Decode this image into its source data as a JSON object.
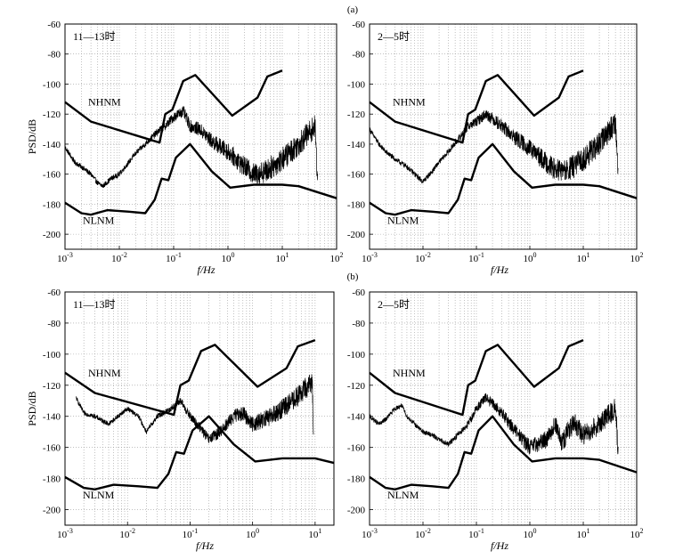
{
  "figure": {
    "panel_labels": [
      "(a)",
      "(b)"
    ]
  },
  "chart_data": [
    {
      "type": "line",
      "row": "(a)",
      "x_scale": "log",
      "xlabel": "f/Hz",
      "ylabel": "PSD/dB",
      "xlim": [
        0.001,
        100
      ],
      "ylim": [
        -210,
        -60
      ],
      "x_tick_labels": [
        "10-3",
        "10-2",
        "10-1",
        "100",
        "101",
        "102"
      ],
      "y_ticks": [
        -60,
        -80,
        -100,
        -120,
        -140,
        -160,
        -180,
        -200
      ],
      "annotation": "11—13时",
      "series": [
        {
          "name": "NHNM",
          "x": [
            0.001,
            0.003,
            0.055,
            0.07,
            0.095,
            0.15,
            0.25,
            1.2,
            3.5,
            5.3,
            10
          ],
          "y": [
            -112,
            -125,
            -139,
            -120,
            -117,
            -98,
            -94,
            -121,
            -109,
            -95,
            -91
          ]
        },
        {
          "name": "NLNM",
          "x": [
            0.001,
            0.002,
            0.003,
            0.006,
            0.015,
            0.03,
            0.045,
            0.06,
            0.08,
            0.11,
            0.2,
            0.5,
            1.1,
            3,
            10,
            20,
            100
          ],
          "y": [
            -179,
            -186,
            -187,
            -184,
            -185,
            -186,
            -177,
            -163,
            -164,
            -149,
            -140,
            -158,
            -169,
            -167,
            -167,
            -168,
            -176
          ]
        },
        {
          "x": [
            0.001,
            0.0015,
            0.002,
            0.003,
            0.004,
            0.005,
            0.007,
            0.01,
            0.015,
            0.02,
            0.03,
            0.05,
            0.07,
            0.1,
            0.15,
            0.2,
            0.3,
            0.5,
            1,
            2,
            3,
            5,
            10,
            20,
            40,
            45
          ],
          "y": [
            -142,
            -152,
            -155,
            -160,
            -166,
            -168,
            -163,
            -160,
            -152,
            -146,
            -140,
            -132,
            -128,
            -122,
            -118,
            -128,
            -130,
            -138,
            -145,
            -155,
            -160,
            -158,
            -150,
            -140,
            -128,
            -165
          ]
        }
      ]
    },
    {
      "type": "line",
      "row": "(a)",
      "x_scale": "log",
      "xlabel": "f/Hz",
      "xlim": [
        0.001,
        100
      ],
      "ylim": [
        -210,
        -60
      ],
      "x_tick_labels": [
        "10-3",
        "10-2",
        "10-1",
        "100",
        "101",
        "102"
      ],
      "y_ticks": [
        -60,
        -80,
        -100,
        -120,
        -140,
        -160,
        -180,
        -200
      ],
      "annotation": "2—5时",
      "series": [
        {
          "name": "NHNM",
          "x": [
            0.001,
            0.003,
            0.055,
            0.07,
            0.095,
            0.15,
            0.25,
            1.2,
            3.5,
            5.3,
            10
          ],
          "y": [
            -112,
            -125,
            -139,
            -120,
            -117,
            -98,
            -94,
            -121,
            -109,
            -95,
            -91
          ]
        },
        {
          "name": "NLNM",
          "x": [
            0.001,
            0.002,
            0.003,
            0.006,
            0.015,
            0.03,
            0.045,
            0.06,
            0.08,
            0.11,
            0.2,
            0.5,
            1.1,
            3,
            10,
            20,
            100
          ],
          "y": [
            -179,
            -186,
            -187,
            -184,
            -185,
            -186,
            -177,
            -163,
            -164,
            -149,
            -140,
            -158,
            -169,
            -167,
            -167,
            -168,
            -176
          ]
        },
        {
          "x": [
            0.001,
            0.0015,
            0.002,
            0.003,
            0.005,
            0.007,
            0.01,
            0.015,
            0.02,
            0.03,
            0.05,
            0.07,
            0.1,
            0.15,
            0.2,
            0.3,
            0.5,
            1,
            2,
            3,
            5,
            10,
            20,
            40,
            45
          ],
          "y": [
            -130,
            -140,
            -145,
            -150,
            -155,
            -160,
            -165,
            -158,
            -152,
            -145,
            -135,
            -128,
            -125,
            -120,
            -123,
            -128,
            -135,
            -143,
            -152,
            -157,
            -158,
            -150,
            -140,
            -125,
            -160
          ]
        }
      ]
    },
    {
      "type": "line",
      "row": "(b)",
      "x_scale": "log",
      "xlabel": "f/Hz",
      "ylabel": "PSD/dB",
      "xlim": [
        0.001,
        20
      ],
      "ylim": [
        -210,
        -60
      ],
      "x_tick_labels": [
        "10-3",
        "10-2",
        "10-1",
        "100",
        "101"
      ],
      "y_ticks": [
        -60,
        -80,
        -100,
        -120,
        -140,
        -160,
        -180,
        -200
      ],
      "annotation": "11—13时",
      "series": [
        {
          "name": "NHNM",
          "x": [
            0.001,
            0.003,
            0.055,
            0.07,
            0.095,
            0.15,
            0.25,
            1.2,
            3.5,
            5.3,
            10
          ],
          "y": [
            -112,
            -125,
            -139,
            -120,
            -117,
            -98,
            -94,
            -121,
            -109,
            -95,
            -91
          ]
        },
        {
          "name": "NLNM",
          "x": [
            0.001,
            0.002,
            0.003,
            0.006,
            0.015,
            0.03,
            0.045,
            0.06,
            0.08,
            0.11,
            0.2,
            0.5,
            1.1,
            3,
            10,
            20
          ],
          "y": [
            -179,
            -186,
            -187,
            -184,
            -185,
            -186,
            -177,
            -163,
            -164,
            -149,
            -140,
            -158,
            -169,
            -167,
            -167,
            -170
          ]
        },
        {
          "x": [
            0.0015,
            0.002,
            0.003,
            0.005,
            0.007,
            0.01,
            0.015,
            0.02,
            0.03,
            0.05,
            0.07,
            0.1,
            0.15,
            0.2,
            0.3,
            0.5,
            0.7,
            1,
            1.5,
            2,
            3,
            5,
            7,
            9,
            9.5
          ],
          "y": [
            -128,
            -138,
            -140,
            -145,
            -140,
            -135,
            -140,
            -150,
            -140,
            -135,
            -130,
            -140,
            -148,
            -155,
            -150,
            -140,
            -138,
            -145,
            -142,
            -140,
            -135,
            -128,
            -122,
            -118,
            -155
          ]
        }
      ]
    },
    {
      "type": "line",
      "row": "(b)",
      "x_scale": "log",
      "xlabel": "f/Hz",
      "xlim": [
        0.001,
        100
      ],
      "ylim": [
        -210,
        -60
      ],
      "x_tick_labels": [
        "10-3",
        "10-2",
        "10-1",
        "100",
        "101",
        "102"
      ],
      "y_ticks": [
        -60,
        -80,
        -100,
        -120,
        -140,
        -160,
        -180,
        -200
      ],
      "annotation": "2—5时",
      "series": [
        {
          "name": "NHNM",
          "x": [
            0.001,
            0.003,
            0.055,
            0.07,
            0.095,
            0.15,
            0.25,
            1.2,
            3.5,
            5.3,
            10
          ],
          "y": [
            -112,
            -125,
            -139,
            -120,
            -117,
            -98,
            -94,
            -121,
            -109,
            -95,
            -91
          ]
        },
        {
          "name": "NLNM",
          "x": [
            0.001,
            0.002,
            0.003,
            0.006,
            0.015,
            0.03,
            0.045,
            0.06,
            0.08,
            0.11,
            0.2,
            0.5,
            1.1,
            3,
            10,
            20,
            100
          ],
          "y": [
            -179,
            -186,
            -187,
            -184,
            -185,
            -186,
            -177,
            -163,
            -164,
            -149,
            -140,
            -158,
            -169,
            -167,
            -167,
            -168,
            -176
          ]
        },
        {
          "x": [
            0.001,
            0.0015,
            0.002,
            0.003,
            0.004,
            0.005,
            0.007,
            0.01,
            0.015,
            0.02,
            0.03,
            0.05,
            0.07,
            0.1,
            0.15,
            0.2,
            0.3,
            0.5,
            1,
            2,
            3,
            4,
            5,
            7,
            10,
            20,
            40,
            45
          ],
          "y": [
            -140,
            -145,
            -142,
            -135,
            -133,
            -140,
            -145,
            -150,
            -152,
            -155,
            -158,
            -150,
            -145,
            -135,
            -128,
            -132,
            -138,
            -148,
            -160,
            -155,
            -145,
            -158,
            -150,
            -145,
            -152,
            -145,
            -135,
            -163
          ]
        }
      ]
    }
  ]
}
